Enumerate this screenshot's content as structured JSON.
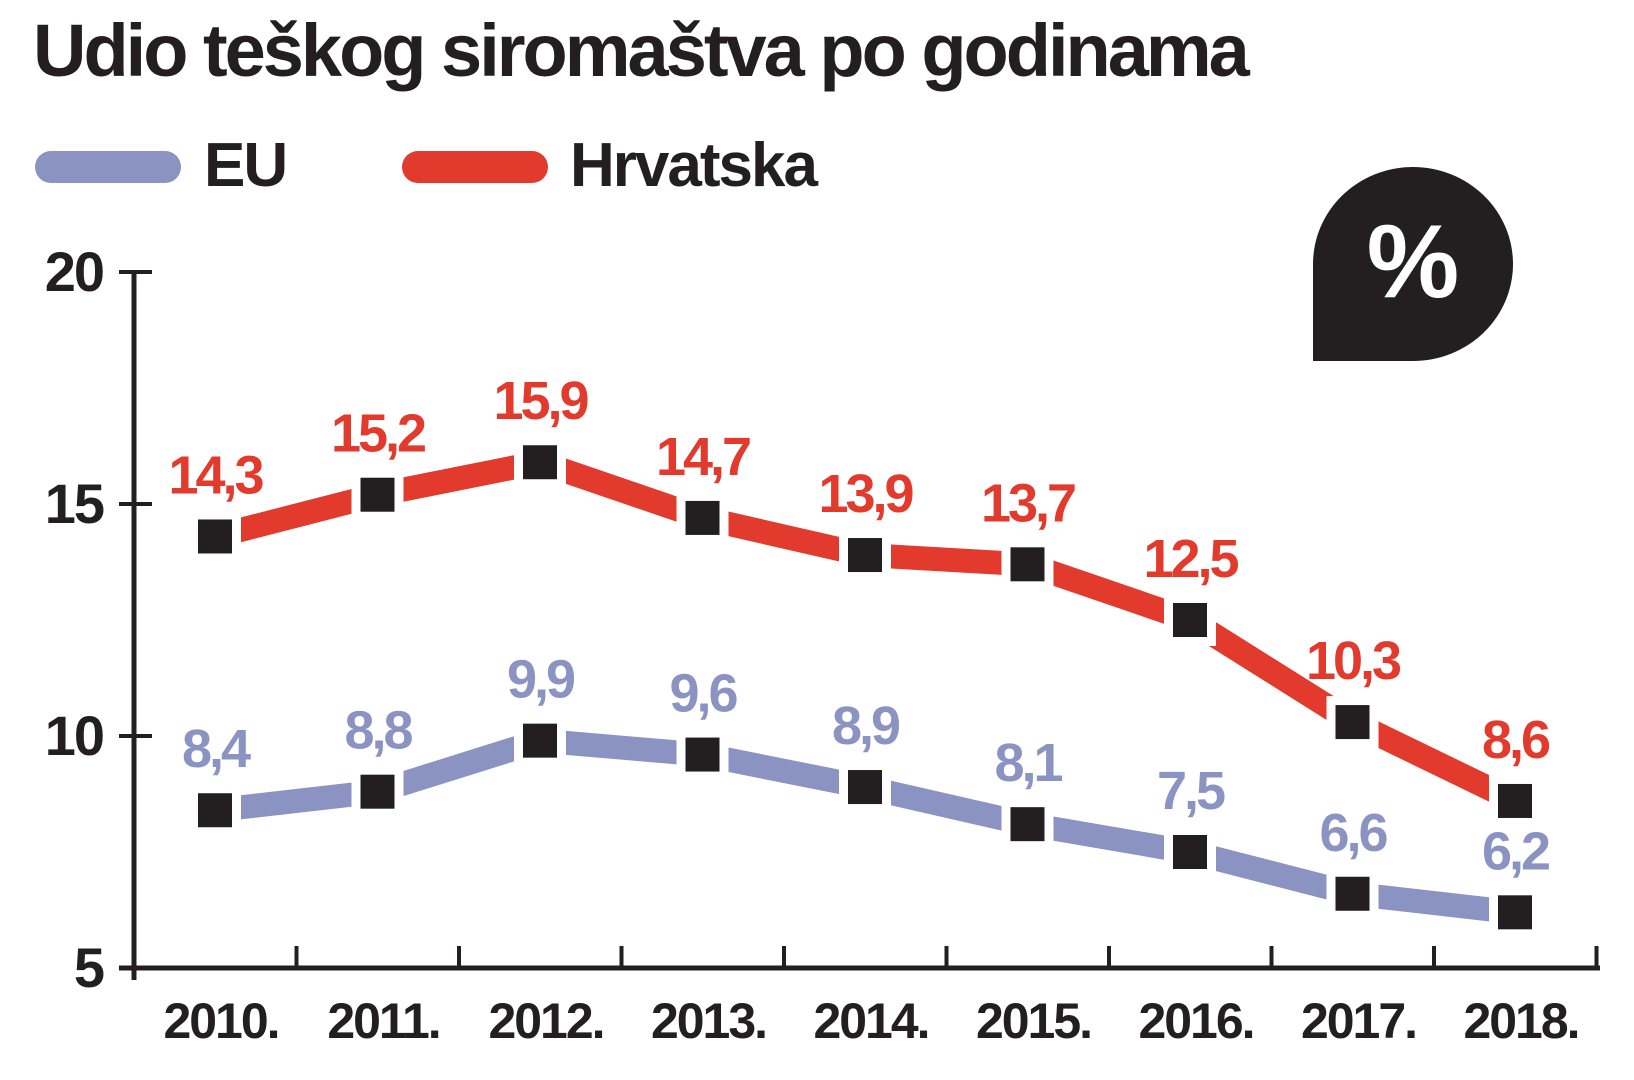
{
  "title": "Udio teškog siromaštva po godinama",
  "badge": {
    "symbol": "%"
  },
  "legend": [
    {
      "label": "EU",
      "color": "#8b93c3"
    },
    {
      "label": "Hrvatska",
      "color": "#e23a2c"
    }
  ],
  "colors": {
    "eu": "#8b93c3",
    "hrvatska": "#e23a2c",
    "axis": "#231f20",
    "marker": "#231f20",
    "background": "#ffffff",
    "badge_bg": "#231f20",
    "badge_text": "#ffffff"
  },
  "chart_data": {
    "type": "line",
    "title": "Udio teškog siromaštva po godinama",
    "x_tick_labels": [
      "2010.",
      "2011.",
      "2012.",
      "2013.",
      "2014.",
      "2015.",
      "2016.",
      "2017.",
      "2018."
    ],
    "categories": [
      2010,
      2011,
      2012,
      2013,
      2014,
      2015,
      2016,
      2017,
      2018
    ],
    "series": [
      {
        "name": "EU",
        "color": "#8b93c3",
        "values": [
          8.4,
          8.8,
          9.9,
          9.6,
          8.9,
          8.1,
          7.5,
          6.6,
          6.2
        ],
        "value_labels": [
          "8,4",
          "8,8",
          "9,9",
          "9,6",
          "8,9",
          "8,1",
          "7,5",
          "6,6",
          "6,2"
        ]
      },
      {
        "name": "Hrvatska",
        "color": "#e23a2c",
        "values": [
          14.3,
          15.2,
          15.9,
          14.7,
          13.9,
          13.7,
          12.5,
          10.3,
          8.6
        ],
        "value_labels": [
          "14,3",
          "15,2",
          "15,9",
          "14,7",
          "13,9",
          "13,7",
          "12,5",
          "10,3",
          "8,6"
        ]
      }
    ],
    "ylim": [
      5,
      20
    ],
    "yticks": [
      5,
      10,
      15,
      20
    ],
    "ytick_labels": [
      "5",
      "10",
      "15",
      "20"
    ],
    "xlabel": "",
    "ylabel": "",
    "unit": "%",
    "grid": false,
    "legend_position": "top",
    "marker_shape": "square",
    "marker_color": "#231f20",
    "decimal_separator": ","
  }
}
